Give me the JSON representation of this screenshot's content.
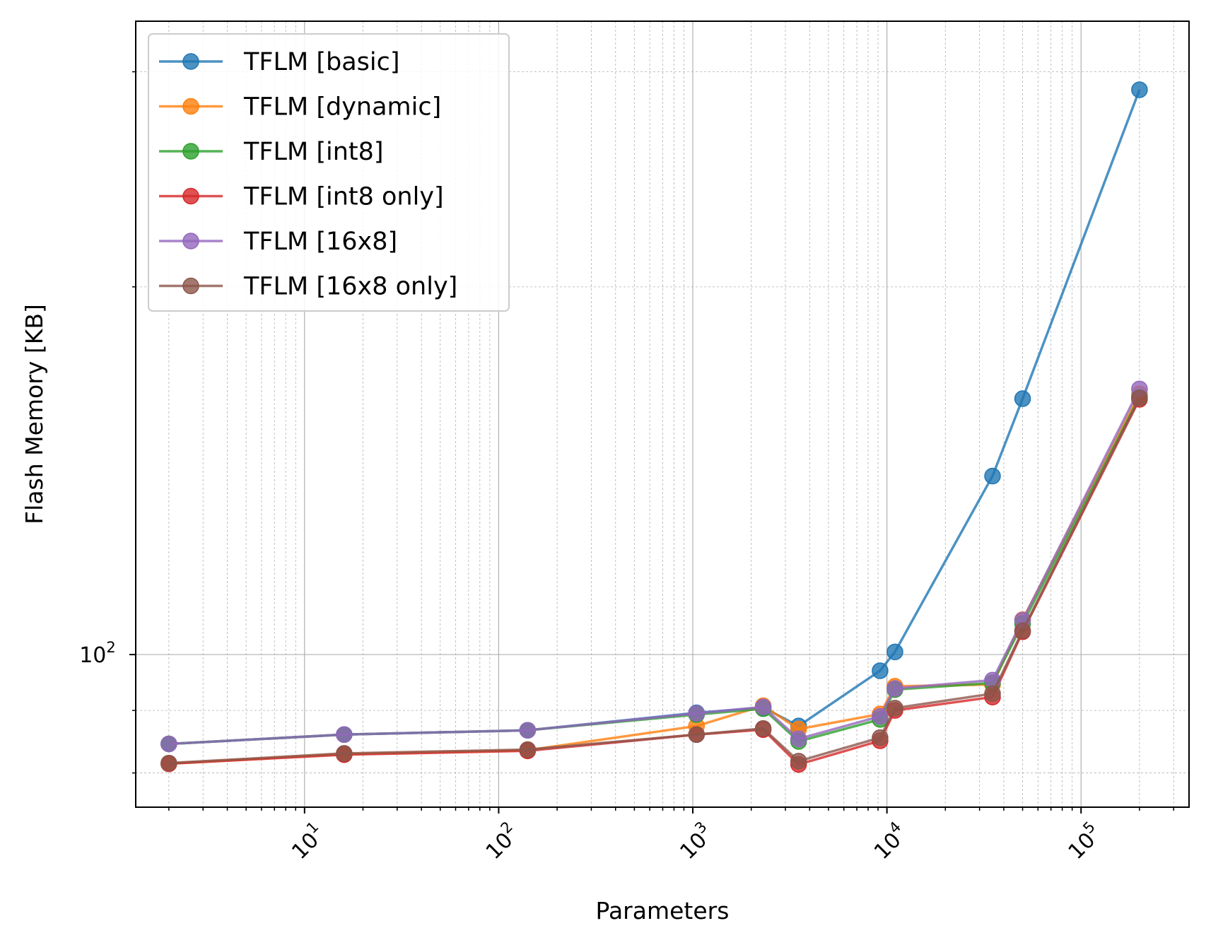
{
  "chart_data": {
    "type": "line",
    "title": "",
    "xlabel": "Parameters",
    "ylabel": "Flash Memory [KB]",
    "xscale": "log",
    "yscale": "log",
    "xlim": [
      1.35,
      360000
    ],
    "ylim": [
      75,
      330
    ],
    "grid": true,
    "legend_position": "top-left",
    "x_ticks": [
      {
        "value": 10,
        "base": "10",
        "exp": "1"
      },
      {
        "value": 100,
        "base": "10",
        "exp": "2"
      },
      {
        "value": 1000,
        "base": "10",
        "exp": "3"
      },
      {
        "value": 10000,
        "base": "10",
        "exp": "4"
      },
      {
        "value": 100000,
        "base": "10",
        "exp": "5"
      }
    ],
    "y_ticks": [
      {
        "value": 100,
        "base": "10",
        "exp": "2"
      }
    ],
    "x": [
      2,
      16,
      141,
      1045,
      2305,
      3509,
      9220,
      11000,
      35000,
      50000,
      200000
    ],
    "series": [
      {
        "name": "TFLM [basic]",
        "color": "#1f77b4",
        "values": [
          84.5,
          86.0,
          86.7,
          89.6,
          90.5,
          87.4,
          97.0,
          100.5,
          140.0,
          162.0,
          290.0
        ]
      },
      {
        "name": "TFLM [dynamic]",
        "color": "#ff7f0e",
        "values": [
          81.4,
          82.9,
          83.5,
          87.4,
          90.8,
          86.9,
          89.4,
          94.2,
          94.5,
          106.8,
          163.5
        ]
      },
      {
        "name": "TFLM [int8]",
        "color": "#2ca02c",
        "values": [
          84.5,
          86.0,
          86.7,
          89.3,
          90.3,
          84.9,
          88.5,
          93.6,
          94.8,
          106.0,
          162.5
        ]
      },
      {
        "name": "TFLM [int8 only]",
        "color": "#d62728",
        "values": [
          81.4,
          82.8,
          83.4,
          86.0,
          86.8,
          81.3,
          85.0,
          90.0,
          92.3,
          104.4,
          161.8
        ]
      },
      {
        "name": "TFLM [16x8]",
        "color": "#9467bd",
        "values": [
          84.5,
          86.0,
          86.7,
          89.5,
          90.6,
          85.3,
          89.0,
          93.8,
          95.3,
          106.7,
          165.0
        ]
      },
      {
        "name": "TFLM [16x8 only]",
        "color": "#8c564b",
        "values": [
          81.5,
          83.0,
          83.6,
          86.0,
          87.0,
          81.8,
          85.5,
          90.4,
          92.9,
          104.6,
          162.2
        ]
      }
    ]
  }
}
